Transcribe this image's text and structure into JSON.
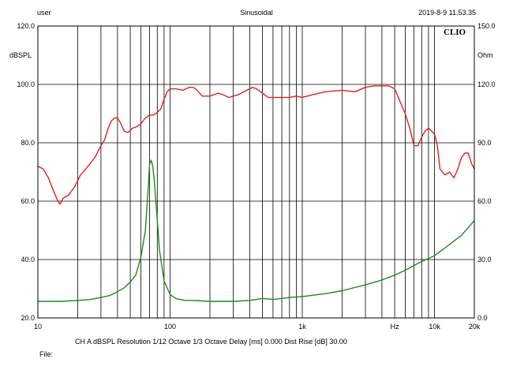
{
  "header": {
    "user": "user",
    "mode": "Sinusoidal",
    "datetime": "2019-8-9 11.53.35"
  },
  "logo": "CLIO",
  "footer": {
    "settings": "CH A   dBSPL   Resolution 1/12 Octave   1/3 Octave   Delay [ms] 0.000   Dist Rise [dB] 30.00",
    "file_label": "File:"
  },
  "colors": {
    "spl_curve": "#e02020",
    "impedance_curve": "#1a8c1a",
    "grid": "#000000"
  },
  "chart_data": {
    "type": "line",
    "title": "",
    "xscale": "log",
    "xlim": [
      10,
      20000
    ],
    "x_tick_labels": [
      {
        "value": 10,
        "label": "10"
      },
      {
        "value": 100,
        "label": "100"
      },
      {
        "value": 1000,
        "label": "1k"
      },
      {
        "value": 5000,
        "label": "Hz"
      },
      {
        "value": 10000,
        "label": "10k"
      },
      {
        "value": 20000,
        "label": "20k"
      }
    ],
    "y_left": {
      "label": "dBSPL",
      "lim": [
        20,
        120
      ],
      "ticks": [
        "20.0",
        "40.0",
        "60.0",
        "80.0",
        "100.0",
        "120.0"
      ]
    },
    "y_right": {
      "label": "Ohm",
      "lim": [
        0,
        150
      ],
      "ticks": [
        "0.0",
        "30.0",
        "60.0",
        "90.0",
        "120.0",
        "150.0"
      ]
    },
    "grid": true,
    "series": [
      {
        "axis": "left",
        "color": "#e02020",
        "points": [
          [
            10,
            72
          ],
          [
            11,
            71
          ],
          [
            12,
            68
          ],
          [
            13,
            64
          ],
          [
            14,
            60.5
          ],
          [
            14.7,
            59
          ],
          [
            15.5,
            61
          ],
          [
            17,
            62
          ],
          [
            19,
            65
          ],
          [
            21,
            69
          ],
          [
            24,
            72
          ],
          [
            27,
            75
          ],
          [
            30,
            79
          ],
          [
            32,
            81
          ],
          [
            34,
            85
          ],
          [
            36,
            87.5
          ],
          [
            38,
            88.5
          ],
          [
            40,
            88.5
          ],
          [
            42,
            87
          ],
          [
            45,
            84
          ],
          [
            48,
            83.5
          ],
          [
            52,
            85
          ],
          [
            56,
            85.5
          ],
          [
            60,
            86.5
          ],
          [
            65,
            88.5
          ],
          [
            70,
            89.5
          ],
          [
            75,
            89.5
          ],
          [
            80,
            90.5
          ],
          [
            85,
            91.5
          ],
          [
            90,
            95
          ],
          [
            95,
            97.5
          ],
          [
            100,
            98.5
          ],
          [
            110,
            98.5
          ],
          [
            125,
            98
          ],
          [
            140,
            99
          ],
          [
            150,
            99
          ],
          [
            160,
            98
          ],
          [
            175,
            96
          ],
          [
            200,
            96
          ],
          [
            230,
            97
          ],
          [
            250,
            96.5
          ],
          [
            280,
            95.5
          ],
          [
            300,
            96
          ],
          [
            330,
            96.5
          ],
          [
            380,
            98
          ],
          [
            420,
            99
          ],
          [
            450,
            98.5
          ],
          [
            500,
            97
          ],
          [
            550,
            95.5
          ],
          [
            600,
            95.5
          ],
          [
            700,
            95.5
          ],
          [
            800,
            95.5
          ],
          [
            900,
            96
          ],
          [
            1000,
            95.5
          ],
          [
            1200,
            96.5
          ],
          [
            1500,
            97.5
          ],
          [
            2000,
            98
          ],
          [
            2500,
            97.5
          ],
          [
            3000,
            99
          ],
          [
            3500,
            99.5
          ],
          [
            4000,
            99.5
          ],
          [
            4500,
            99.5
          ],
          [
            5000,
            98.5
          ],
          [
            5500,
            94
          ],
          [
            6000,
            90
          ],
          [
            6500,
            85
          ],
          [
            7000,
            79
          ],
          [
            7500,
            79
          ],
          [
            8000,
            82
          ],
          [
            8500,
            84
          ],
          [
            9000,
            85
          ],
          [
            9500,
            84
          ],
          [
            10000,
            83
          ],
          [
            10500,
            79
          ],
          [
            11000,
            71
          ],
          [
            12000,
            69
          ],
          [
            13000,
            70
          ],
          [
            14000,
            68
          ],
          [
            15000,
            71
          ],
          [
            16000,
            75
          ],
          [
            17000,
            76.5
          ],
          [
            18000,
            76.5
          ],
          [
            19000,
            73
          ],
          [
            20000,
            71
          ]
        ]
      },
      {
        "axis": "right",
        "color": "#1a8c1a",
        "points": [
          [
            10,
            8.5
          ],
          [
            15,
            8.5
          ],
          [
            20,
            9
          ],
          [
            25,
            9.5
          ],
          [
            30,
            10.5
          ],
          [
            35,
            11.5
          ],
          [
            40,
            13.5
          ],
          [
            45,
            15.5
          ],
          [
            50,
            18.5
          ],
          [
            55,
            22
          ],
          [
            60,
            31
          ],
          [
            65,
            45
          ],
          [
            68,
            65
          ],
          [
            70,
            79
          ],
          [
            72,
            81
          ],
          [
            74,
            78
          ],
          [
            76,
            70
          ],
          [
            79,
            55
          ],
          [
            83,
            35
          ],
          [
            90,
            19
          ],
          [
            100,
            12
          ],
          [
            110,
            10
          ],
          [
            130,
            9
          ],
          [
            150,
            9
          ],
          [
            200,
            8.5
          ],
          [
            300,
            8.5
          ],
          [
            400,
            9
          ],
          [
            500,
            10
          ],
          [
            600,
            9.5
          ],
          [
            700,
            10
          ],
          [
            800,
            10.5
          ],
          [
            1000,
            11
          ],
          [
            1500,
            12.5
          ],
          [
            2000,
            14
          ],
          [
            3000,
            17
          ],
          [
            4000,
            19.5
          ],
          [
            5000,
            22
          ],
          [
            6000,
            24.5
          ],
          [
            7000,
            27
          ],
          [
            8000,
            29
          ],
          [
            10000,
            32
          ],
          [
            12000,
            36
          ],
          [
            14000,
            39.5
          ],
          [
            16000,
            42.5
          ],
          [
            18000,
            46.5
          ],
          [
            20000,
            50
          ]
        ]
      }
    ]
  }
}
